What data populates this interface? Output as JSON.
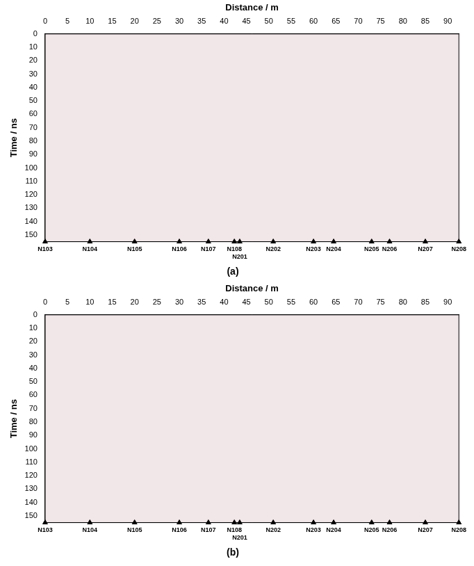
{
  "chart_data": [
    {
      "type": "scatter",
      "title": "(a)",
      "x_label": "Distance / m",
      "y_label": "Time / ns",
      "xlim": [
        0,
        92.5
      ],
      "ylim": [
        0,
        155
      ],
      "xticks": [
        0,
        5,
        10,
        15,
        20,
        25,
        30,
        35,
        40,
        45,
        50,
        55,
        60,
        65,
        70,
        75,
        80,
        85,
        90
      ],
      "yticks": [
        0,
        10,
        20,
        30,
        40,
        50,
        60,
        70,
        80,
        90,
        100,
        110,
        120,
        130,
        140,
        150
      ],
      "stations": {
        "names": [
          "N103",
          "N104",
          "N105",
          "N106",
          "N107",
          "N108",
          "N201",
          "N202",
          "N203",
          "N204",
          "N205",
          "N206",
          "N207",
          "N208"
        ],
        "x": [
          0,
          10,
          20,
          30,
          36.5,
          42.3,
          43.5,
          51,
          60,
          64.5,
          73,
          77,
          85,
          92.5
        ]
      },
      "marker": "triangle",
      "color": "#000000",
      "grid": false
    },
    {
      "type": "scatter",
      "title": "(b)",
      "x_label": "Distance / m",
      "y_label": "Time / ns",
      "xlim": [
        0,
        92.5
      ],
      "ylim": [
        0,
        155
      ],
      "xticks": [
        0,
        5,
        10,
        15,
        20,
        25,
        30,
        35,
        40,
        45,
        50,
        55,
        60,
        65,
        70,
        75,
        80,
        85,
        90
      ],
      "yticks": [
        0,
        10,
        20,
        30,
        40,
        50,
        60,
        70,
        80,
        90,
        100,
        110,
        120,
        130,
        140,
        150
      ],
      "stations": {
        "names": [
          "N103",
          "N104",
          "N105",
          "N106",
          "N107",
          "N108",
          "N201",
          "N202",
          "N203",
          "N204",
          "N205",
          "N206",
          "N207",
          "N208"
        ],
        "x": [
          0,
          10,
          20,
          30,
          36.5,
          42.3,
          43.5,
          51,
          60,
          64.5,
          73,
          77,
          85,
          92.5
        ]
      },
      "marker": "triangle",
      "color": "#000000",
      "grid": false
    }
  ]
}
